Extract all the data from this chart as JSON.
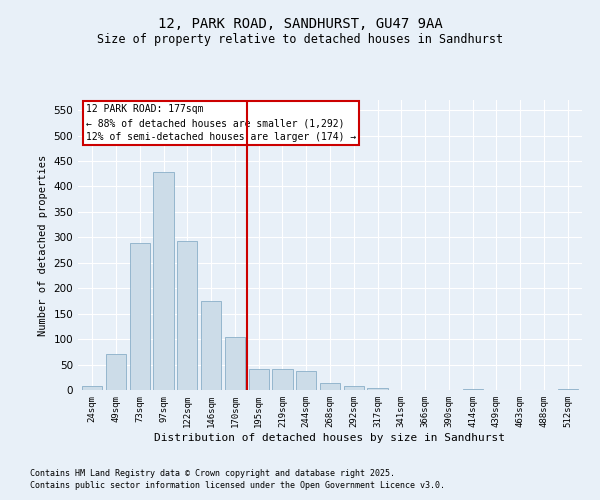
{
  "title1": "12, PARK ROAD, SANDHURST, GU47 9AA",
  "title2": "Size of property relative to detached houses in Sandhurst",
  "xlabel": "Distribution of detached houses by size in Sandhurst",
  "ylabel": "Number of detached properties",
  "categories": [
    "24sqm",
    "49sqm",
    "73sqm",
    "97sqm",
    "122sqm",
    "146sqm",
    "170sqm",
    "195sqm",
    "219sqm",
    "244sqm",
    "268sqm",
    "292sqm",
    "317sqm",
    "341sqm",
    "366sqm",
    "390sqm",
    "414sqm",
    "439sqm",
    "463sqm",
    "488sqm",
    "512sqm"
  ],
  "bar_values": [
    7,
    70,
    289,
    428,
    293,
    175,
    105,
    42,
    42,
    38,
    14,
    8,
    3,
    0,
    0,
    0,
    2,
    0,
    0,
    0,
    2
  ],
  "bar_color": "#ccdce8",
  "bar_edge_color": "#8aafc8",
  "annotation_title": "12 PARK ROAD: 177sqm",
  "annotation_line1": "← 88% of detached houses are smaller (1,292)",
  "annotation_line2": "12% of semi-detached houses are larger (174) →",
  "annotation_box_color": "#ffffff",
  "annotation_box_edge": "#cc0000",
  "vline_color": "#cc0000",
  "ylim": [
    0,
    570
  ],
  "yticks": [
    0,
    50,
    100,
    150,
    200,
    250,
    300,
    350,
    400,
    450,
    500,
    550
  ],
  "footnote1": "Contains HM Land Registry data © Crown copyright and database right 2025.",
  "footnote2": "Contains public sector information licensed under the Open Government Licence v3.0.",
  "bg_color": "#e8f0f8"
}
